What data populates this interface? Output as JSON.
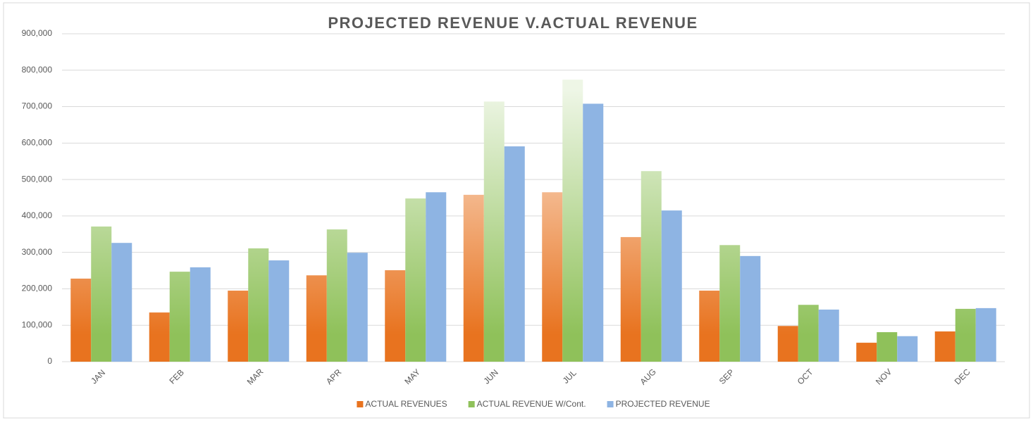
{
  "chart_data": {
    "type": "bar",
    "title": "PROJECTED REVENUE V.ACTUAL REVENUE",
    "categories": [
      "JAN",
      "FEB",
      "MAR",
      "APR",
      "MAY",
      "JUN",
      "JUL",
      "AUG",
      "SEP",
      "OCT",
      "NOV",
      "DEC"
    ],
    "series": [
      {
        "name": "ACTUAL REVENUES",
        "color": "#e8731f",
        "gradient": true,
        "values": [
          228000,
          135000,
          195000,
          237000,
          251000,
          458000,
          465000,
          342000,
          195000,
          98000,
          52000,
          83000
        ]
      },
      {
        "name": "ACTUAL REVENUE W/Cont.",
        "color": "#8fc15a",
        "gradient": true,
        "values": [
          371000,
          247000,
          311000,
          363000,
          448000,
          714000,
          774000,
          523000,
          320000,
          156000,
          81000,
          145000
        ]
      },
      {
        "name": "PROJECTED REVENUE",
        "color": "#8eb4e3",
        "gradient": false,
        "values": [
          326000,
          259000,
          278000,
          299000,
          465000,
          591000,
          708000,
          415000,
          290000,
          143000,
          70000,
          147000
        ]
      }
    ],
    "ylim": [
      0,
      900000
    ],
    "yticks": [
      0,
      {
        "value": 100000,
        "label": "100,000"
      },
      {
        "value": 200000,
        "label": "200,000"
      },
      {
        "value": 300000,
        "label": "300,000"
      },
      {
        "value": 400000,
        "label": "400,000"
      },
      {
        "value": 500000,
        "label": "500,000"
      },
      {
        "value": 600000,
        "label": "600,000"
      },
      {
        "value": 700000,
        "label": "700,000"
      },
      {
        "value": 800000,
        "label": "800,000"
      },
      {
        "value": 900000,
        "label": "900,000"
      }
    ],
    "grid": true,
    "legend": "bottom"
  }
}
